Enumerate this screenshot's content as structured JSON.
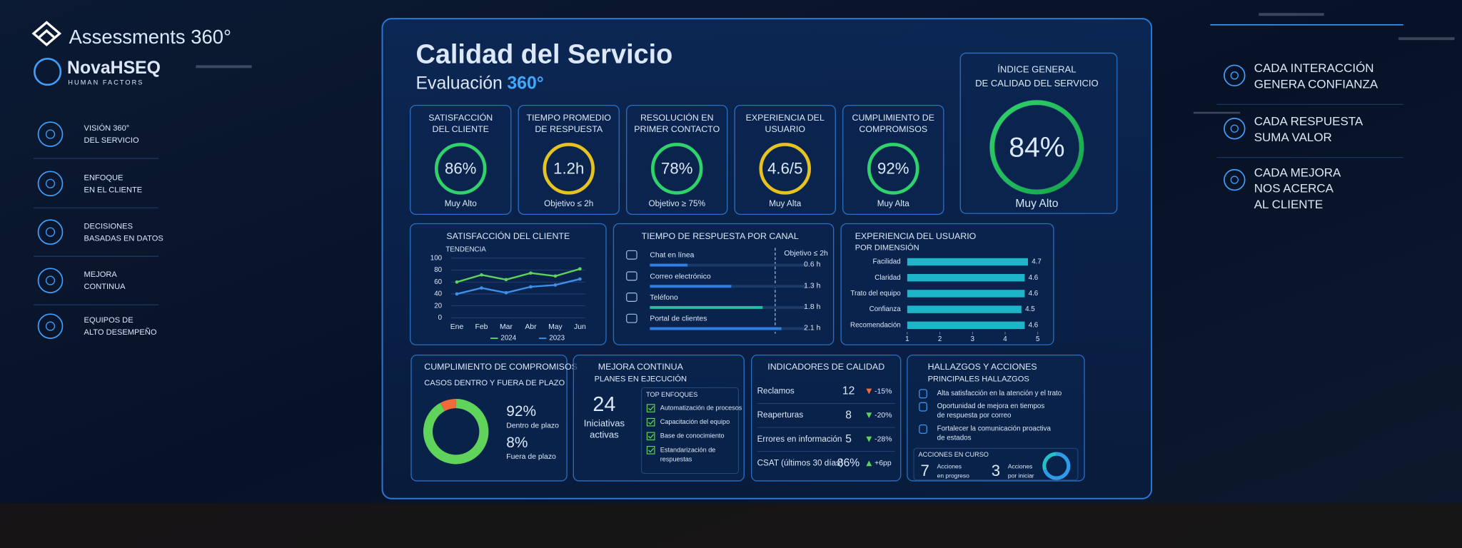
{
  "brand": {
    "product": "Assessments 360°",
    "company": "NovaHSEQ",
    "tagline": "HUMAN FACTORS"
  },
  "sidebar": [
    {
      "lines": [
        "VISIÓN 360°",
        "DEL SERVICIO"
      ]
    },
    {
      "lines": [
        "ENFOQUE",
        "EN EL CLIENTE"
      ]
    },
    {
      "lines": [
        "DECISIONES",
        "BASADAS EN DATOS"
      ]
    },
    {
      "lines": [
        "MEJORA",
        "CONTINUA"
      ]
    },
    {
      "lines": [
        "EQUIPOS DE",
        "ALTO DESEMPEÑO"
      ]
    }
  ],
  "messages": [
    {
      "lines": [
        "CADA INTERACCIÓN",
        "GENERA CONFIANZA"
      ]
    },
    {
      "lines": [
        "CADA RESPUESTA",
        "SUMA VALOR"
      ]
    },
    {
      "lines": [
        "CADA MEJORA",
        "NOS ACERCA",
        "AL CLIENTE"
      ]
    }
  ],
  "dashboard": {
    "title": "Calidad del Servicio",
    "subtitle": "Evaluación",
    "subtitle_highlight": "360°",
    "kpis": [
      {
        "title": [
          "SATISFACCIÓN",
          "DEL CLIENTE"
        ],
        "value": "86%",
        "note": "Muy Alto"
      },
      {
        "title": [
          "TIEMPO PROMEDIO",
          "DE RESPUESTA"
        ],
        "value": "1.2h",
        "note": "Objetivo ≤ 2h"
      },
      {
        "title": [
          "RESOLUCIÓN EN",
          "PRIMER CONTACTO"
        ],
        "value": "78%",
        "note": "Objetivo ≥ 75%"
      },
      {
        "title": [
          "EXPERIENCIA DEL",
          "USUARIO"
        ],
        "value": "4.6/5",
        "note": "Muy Alta"
      },
      {
        "title": [
          "CUMPLIMIENTO DE",
          "COMPROMISOS"
        ],
        "value": "92%",
        "note": "Muy Alta"
      }
    ],
    "index": {
      "title": [
        "ÍNDICE GENERAL",
        "DE CALIDAD DEL SERVICIO"
      ],
      "value": "84%",
      "note": "Muy Alto"
    },
    "satisfaction_chart": {
      "type": "line",
      "title": "SATISFACCIÓN DEL CLIENTE",
      "subtitle": "TENDENCIA",
      "categories": [
        "Ene",
        "Feb",
        "Mar",
        "Abr",
        "May",
        "Jun"
      ],
      "series": [
        {
          "name": "2024",
          "color": "#5fd35a",
          "values": [
            60,
            72,
            64,
            75,
            70,
            82
          ]
        },
        {
          "name": "2023",
          "color": "#3f8fe8",
          "values": [
            40,
            50,
            42,
            52,
            55,
            65
          ]
        }
      ],
      "ylim": [
        0,
        100
      ],
      "yticks": [
        0,
        20,
        40,
        60,
        80,
        100
      ],
      "grid": true
    },
    "response_chart": {
      "type": "bar",
      "title": "TIEMPO DE RESPUESTA POR CANAL",
      "categories": [
        "Chat en línea",
        "Correo electrónico",
        "Teléfono",
        "Portal de clientes"
      ],
      "values": [
        0.6,
        1.3,
        1.8,
        2.1
      ],
      "value_labels": [
        "0.6 h",
        "1.3 h",
        "1.8 h",
        "2.1 h"
      ],
      "colors": [
        "#2f7fe0",
        "#2f7fe0",
        "#22c0a0",
        "#2f7fe0"
      ],
      "xlim": [
        0,
        2.5
      ],
      "target": {
        "value": 2,
        "label": "Objetivo ≤ 2h"
      }
    },
    "experience_chart": {
      "type": "bar",
      "title": "EXPERIENCIA DEL USUARIO",
      "subtitle": "POR DIMENSIÓN",
      "categories": [
        "Facilidad",
        "Claridad",
        "Trato del equipo",
        "Confianza",
        "Recomendación"
      ],
      "values": [
        4.7,
        4.6,
        4.6,
        4.5,
        4.6
      ],
      "color": "#1fb5c9",
      "xlim": [
        1,
        5
      ],
      "xticks": [
        1,
        2,
        3,
        4,
        5
      ]
    },
    "commitments": {
      "type": "pie",
      "title": "CUMPLIMIENTO DE COMPROMISOS",
      "subtitle": "CASOS DENTRO Y FUERA DE PLAZO",
      "categories": [
        "Dentro de plazo",
        "Fuera de plazo"
      ],
      "values": [
        92,
        8
      ],
      "value_labels": [
        "92%",
        "8%"
      ],
      "colors": [
        "#5fd35a",
        "#f06a3a"
      ]
    },
    "improvement": {
      "title": "MEJORA CONTINUA",
      "subtitle": "PLANES EN EJECUCIÓN",
      "count": "24",
      "count_label": [
        "Iniciativas",
        "activas"
      ],
      "list_title": "TOP ENFOQUES",
      "items": [
        [
          "Automatización de procesos"
        ],
        [
          "Capacitación del equipo"
        ],
        [
          "Base de conocimiento"
        ],
        [
          "Estandarización de",
          "respuestas"
        ]
      ]
    },
    "indicators": {
      "title": "INDICADORES DE CALIDAD",
      "rows": [
        {
          "name": "Reclamos",
          "value": "12",
          "change": "-15%",
          "direction": "down",
          "color": "#f06a3a"
        },
        {
          "name": "Reaperturas",
          "value": "8",
          "change": "-20%",
          "direction": "down",
          "color": "#5fd35a"
        },
        {
          "name": "Errores en información",
          "value": "5",
          "change": "-28%",
          "direction": "down",
          "color": "#5fd35a"
        },
        {
          "name": "CSAT (últimos 30 días)",
          "value": "86%",
          "change": "+6pp",
          "direction": "up",
          "color": "#5fd35a"
        }
      ]
    },
    "findings": {
      "title": "HALLAZGOS Y ACCIONES",
      "subtitle": "PRINCIPALES HALLAZGOS",
      "items": [
        [
          "Alta satisfacción en la atención y el trato"
        ],
        [
          "Oportunidad de mejora en tiempos",
          "de respuesta por correo"
        ],
        [
          "Fortalecer la comunicación proactiva",
          "de estados"
        ]
      ],
      "actions_title": "ACCIONES EN CURSO",
      "actions": {
        "type": "pie",
        "categories": [
          [
            "Acciones",
            "en progreso"
          ],
          [
            "Acciones",
            "por iniciar"
          ]
        ],
        "values": [
          7,
          3
        ],
        "colors": [
          "#2f9be8",
          "#22c0c9"
        ]
      }
    }
  }
}
